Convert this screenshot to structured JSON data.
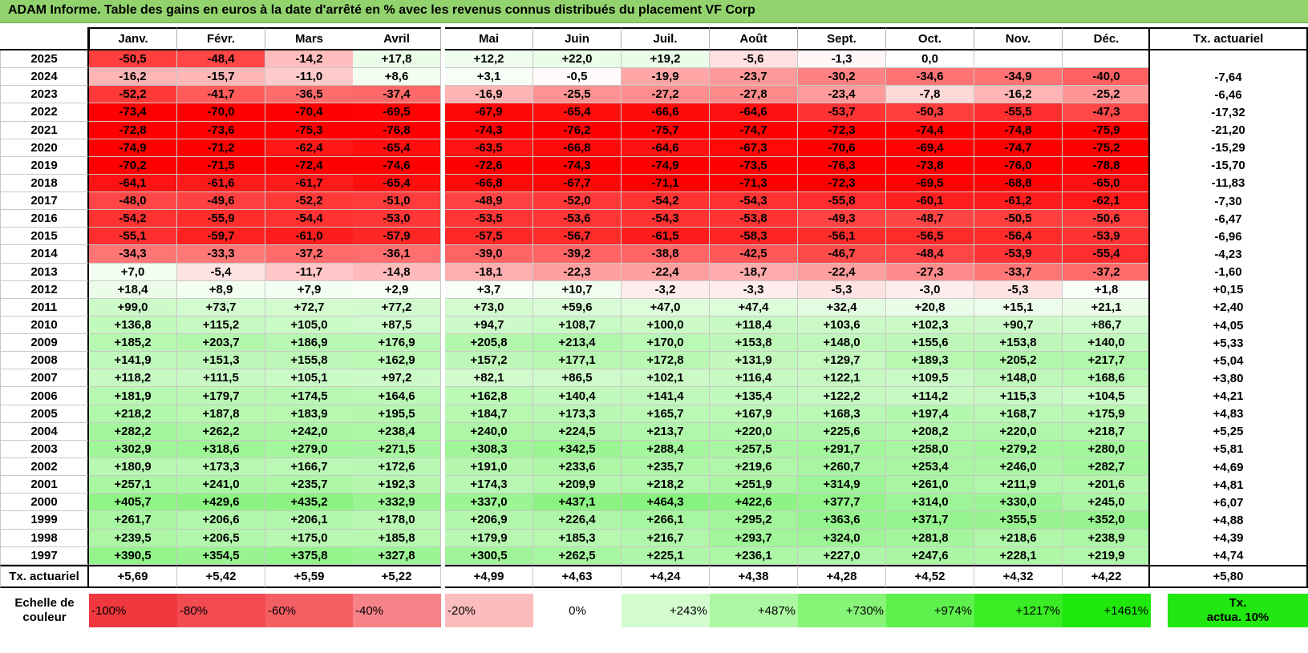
{
  "title": "ADAM Informe. Table des gains en euros à la date d'arrêté en % avec les revenus connus distribués du placement VF Corp",
  "months": [
    "Janv.",
    "Févr.",
    "Mars",
    "Avril",
    "Mai",
    "Juin",
    "Juil.",
    "Août",
    "Sept.",
    "Oct.",
    "Nov.",
    "Déc."
  ],
  "tx_header": "Tx. actuariel",
  "rows": [
    {
      "year": "2025",
      "values": [
        "-50,5",
        "-48,4",
        "-14,2",
        "+17,8",
        "+12,2",
        "+22,0",
        "+19,2",
        "-5,6",
        "-1,3",
        "0,0",
        "",
        ""
      ],
      "tx": ""
    },
    {
      "year": "2024",
      "values": [
        "-16,2",
        "-15,7",
        "-11,0",
        "+8,6",
        "+3,1",
        "-0,5",
        "-19,9",
        "-23,7",
        "-30,2",
        "-34,6",
        "-34,9",
        "-40,0"
      ],
      "tx": "-7,64"
    },
    {
      "year": "2023",
      "values": [
        "-52,2",
        "-41,7",
        "-36,5",
        "-37,4",
        "-16,9",
        "-25,5",
        "-27,2",
        "-27,8",
        "-23,4",
        "-7,8",
        "-16,2",
        "-25,2"
      ],
      "tx": "-6,46"
    },
    {
      "year": "2022",
      "values": [
        "-73,4",
        "-70,0",
        "-70,4",
        "-69,5",
        "-67,9",
        "-65,4",
        "-66,6",
        "-64,6",
        "-53,7",
        "-50,3",
        "-55,5",
        "-47,3"
      ],
      "tx": "-17,32"
    },
    {
      "year": "2021",
      "values": [
        "-72,8",
        "-73,6",
        "-75,3",
        "-76,8",
        "-74,3",
        "-76,2",
        "-75,7",
        "-74,7",
        "-72,3",
        "-74,4",
        "-74,8",
        "-75,9"
      ],
      "tx": "-21,20"
    },
    {
      "year": "2020",
      "values": [
        "-74,9",
        "-71,2",
        "-62,4",
        "-65,4",
        "-63,5",
        "-66,8",
        "-64,6",
        "-67,3",
        "-70,6",
        "-69,4",
        "-74,7",
        "-75,2"
      ],
      "tx": "-15,29"
    },
    {
      "year": "2019",
      "values": [
        "-70,2",
        "-71,5",
        "-72,4",
        "-74,6",
        "-72,6",
        "-74,3",
        "-74,9",
        "-73,5",
        "-76,3",
        "-73,8",
        "-76,0",
        "-78,8"
      ],
      "tx": "-15,70"
    },
    {
      "year": "2018",
      "values": [
        "-64,1",
        "-61,6",
        "-61,7",
        "-65,4",
        "-66,8",
        "-67,7",
        "-71,1",
        "-71,3",
        "-72,3",
        "-69,5",
        "-68,8",
        "-65,0"
      ],
      "tx": "-11,83"
    },
    {
      "year": "2017",
      "values": [
        "-48,0",
        "-49,6",
        "-52,2",
        "-51,0",
        "-48,9",
        "-52,0",
        "-54,2",
        "-54,3",
        "-55,8",
        "-60,1",
        "-61,2",
        "-62,1"
      ],
      "tx": "-7,30"
    },
    {
      "year": "2016",
      "values": [
        "-54,2",
        "-55,9",
        "-54,4",
        "-53,0",
        "-53,5",
        "-53,6",
        "-54,3",
        "-53,8",
        "-49,3",
        "-48,7",
        "-50,5",
        "-50,6"
      ],
      "tx": "-6,47"
    },
    {
      "year": "2015",
      "values": [
        "-55,1",
        "-59,7",
        "-61,0",
        "-57,9",
        "-57,5",
        "-56,7",
        "-61,5",
        "-58,3",
        "-56,1",
        "-56,5",
        "-56,4",
        "-53,9"
      ],
      "tx": "-6,96"
    },
    {
      "year": "2014",
      "values": [
        "-34,3",
        "-33,3",
        "-37,2",
        "-36,1",
        "-39,0",
        "-39,2",
        "-38,8",
        "-42,5",
        "-46,7",
        "-48,4",
        "-53,9",
        "-55,4"
      ],
      "tx": "-4,23"
    },
    {
      "year": "2013",
      "values": [
        "+7,0",
        "-5,4",
        "-11,7",
        "-14,8",
        "-18,1",
        "-22,3",
        "-22,4",
        "-18,7",
        "-22,4",
        "-27,3",
        "-33,7",
        "-37,2"
      ],
      "tx": "-1,60"
    },
    {
      "year": "2012",
      "values": [
        "+18,4",
        "+8,9",
        "+7,9",
        "+2,9",
        "+3,7",
        "+10,7",
        "-3,2",
        "-3,3",
        "-5,3",
        "-3,0",
        "-5,3",
        "+1,8"
      ],
      "tx": "+0,15"
    },
    {
      "year": "2011",
      "values": [
        "+99,0",
        "+73,7",
        "+72,7",
        "+77,2",
        "+73,0",
        "+59,6",
        "+47,0",
        "+47,4",
        "+32,4",
        "+20,8",
        "+15,1",
        "+21,1"
      ],
      "tx": "+2,40"
    },
    {
      "year": "2010",
      "values": [
        "+136,8",
        "+115,2",
        "+105,0",
        "+87,5",
        "+94,7",
        "+108,7",
        "+100,0",
        "+118,4",
        "+103,6",
        "+102,3",
        "+90,7",
        "+86,7"
      ],
      "tx": "+4,05"
    },
    {
      "year": "2009",
      "values": [
        "+185,2",
        "+203,7",
        "+186,9",
        "+176,9",
        "+205,8",
        "+213,4",
        "+170,0",
        "+153,8",
        "+148,0",
        "+155,6",
        "+153,8",
        "+140,0"
      ],
      "tx": "+5,33"
    },
    {
      "year": "2008",
      "values": [
        "+141,9",
        "+151,3",
        "+155,8",
        "+162,9",
        "+157,2",
        "+177,1",
        "+172,8",
        "+131,9",
        "+129,7",
        "+189,3",
        "+205,2",
        "+217,7"
      ],
      "tx": "+5,04"
    },
    {
      "year": "2007",
      "values": [
        "+118,2",
        "+111,5",
        "+105,1",
        "+97,2",
        "+82,1",
        "+86,5",
        "+102,1",
        "+116,4",
        "+122,1",
        "+109,5",
        "+148,0",
        "+168,6"
      ],
      "tx": "+3,80"
    },
    {
      "year": "2006",
      "values": [
        "+181,9",
        "+179,7",
        "+174,5",
        "+164,6",
        "+162,8",
        "+140,4",
        "+141,4",
        "+135,4",
        "+122,2",
        "+114,2",
        "+115,3",
        "+104,5"
      ],
      "tx": "+4,21"
    },
    {
      "year": "2005",
      "values": [
        "+218,2",
        "+187,8",
        "+183,9",
        "+195,5",
        "+184,7",
        "+173,3",
        "+165,7",
        "+167,9",
        "+168,3",
        "+197,4",
        "+168,7",
        "+175,9"
      ],
      "tx": "+4,83"
    },
    {
      "year": "2004",
      "values": [
        "+282,2",
        "+262,2",
        "+242,0",
        "+238,4",
        "+240,0",
        "+224,5",
        "+213,7",
        "+220,0",
        "+225,6",
        "+208,2",
        "+220,0",
        "+218,7"
      ],
      "tx": "+5,25"
    },
    {
      "year": "2003",
      "values": [
        "+302,9",
        "+318,6",
        "+279,0",
        "+271,5",
        "+308,3",
        "+342,5",
        "+288,4",
        "+257,5",
        "+291,7",
        "+258,0",
        "+279,2",
        "+280,0"
      ],
      "tx": "+5,81"
    },
    {
      "year": "2002",
      "values": [
        "+180,9",
        "+173,3",
        "+166,7",
        "+172,6",
        "+191,0",
        "+233,6",
        "+235,7",
        "+219,6",
        "+260,7",
        "+253,4",
        "+246,0",
        "+282,7"
      ],
      "tx": "+4,69"
    },
    {
      "year": "2001",
      "values": [
        "+257,1",
        "+241,0",
        "+235,7",
        "+192,3",
        "+174,3",
        "+209,9",
        "+218,2",
        "+251,9",
        "+314,9",
        "+261,0",
        "+211,9",
        "+201,6"
      ],
      "tx": "+4,81"
    },
    {
      "year": "2000",
      "values": [
        "+405,7",
        "+429,6",
        "+435,2",
        "+332,9",
        "+337,0",
        "+437,1",
        "+464,3",
        "+422,6",
        "+377,7",
        "+314,0",
        "+330,0",
        "+245,0"
      ],
      "tx": "+6,07"
    },
    {
      "year": "1999",
      "values": [
        "+261,7",
        "+206,6",
        "+206,1",
        "+178,0",
        "+206,9",
        "+226,4",
        "+266,1",
        "+295,2",
        "+363,6",
        "+371,7",
        "+355,5",
        "+352,0"
      ],
      "tx": "+4,88"
    },
    {
      "year": "1998",
      "values": [
        "+239,5",
        "+206,5",
        "+175,0",
        "+185,8",
        "+179,9",
        "+185,3",
        "+216,7",
        "+293,7",
        "+324,0",
        "+281,8",
        "+218,6",
        "+238,9"
      ],
      "tx": "+4,39"
    },
    {
      "year": "1997",
      "values": [
        "+390,5",
        "+354,5",
        "+375,8",
        "+327,8",
        "+300,5",
        "+262,5",
        "+225,1",
        "+236,1",
        "+227,0",
        "+247,6",
        "+228,1",
        "+219,9"
      ],
      "tx": "+4,74"
    }
  ],
  "totals": {
    "label": "Tx. actuariel",
    "values": [
      "+5,69",
      "+5,42",
      "+5,59",
      "+5,22",
      "+4,99",
      "+4,63",
      "+4,24",
      "+4,38",
      "+4,28",
      "+4,52",
      "+4,32",
      "+4,22"
    ],
    "tx": "+5,80"
  },
  "scale": {
    "label_line1": "Echelle de",
    "label_line2": "couleur",
    "items": [
      {
        "text": "-100%",
        "color": "#f0393f",
        "align": "left"
      },
      {
        "text": "-80%",
        "color": "#f24c52",
        "align": "left"
      },
      {
        "text": "-60%",
        "color": "#f45f63",
        "align": "left"
      },
      {
        "text": "-40%",
        "color": "#f78388",
        "align": "left"
      },
      {
        "text": "-20%",
        "color": "#fbbcbd",
        "align": "left"
      },
      {
        "text": "0%",
        "color": "#ffffff",
        "align": "center"
      },
      {
        "text": "+243%",
        "color": "#d3fccf",
        "align": "right"
      },
      {
        "text": "+487%",
        "color": "#acf7a2",
        "align": "right"
      },
      {
        "text": "+730%",
        "color": "#85f477",
        "align": "right"
      },
      {
        "text": "+974%",
        "color": "#5ef04d",
        "align": "right"
      },
      {
        "text": "+1217%",
        "color": "#39ec24",
        "align": "right"
      },
      {
        "text": "+1461%",
        "color": "#1ee80c",
        "align": "right"
      }
    ],
    "tx_line1": "Tx.",
    "tx_line2": "actua. 10%",
    "tx_color": "#22e812"
  }
}
